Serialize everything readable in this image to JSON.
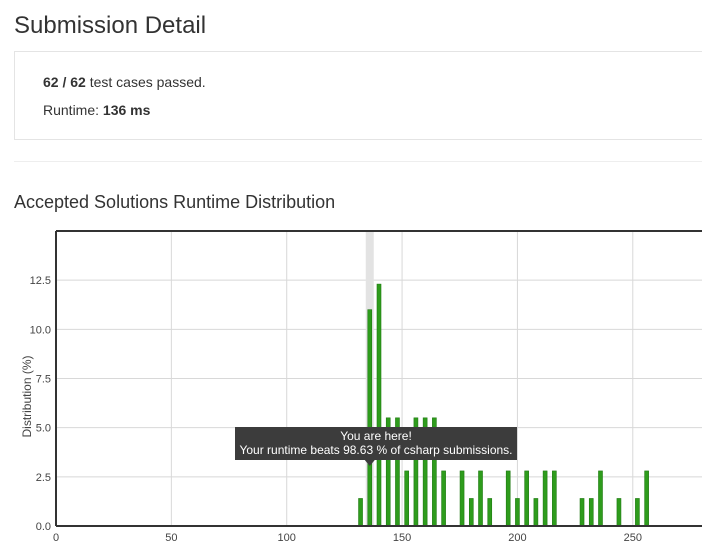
{
  "page": {
    "title": "Submission Detail"
  },
  "result": {
    "passed": "62",
    "separator": " / ",
    "total": "62",
    "cases_suffix": " test cases passed.",
    "runtime_label": "Runtime: ",
    "runtime_value": "136 ms"
  },
  "section": {
    "title": "Accepted Solutions Runtime Distribution"
  },
  "colors": {
    "bar": "#2e9c1c",
    "bar_stroke": "#1f7a12",
    "highlight_band": "#e3e3e3",
    "grid": "#d8d8d8",
    "axis": "#333333",
    "tooltip_bg": "#3c3c3c"
  },
  "chart_data": {
    "type": "bar",
    "title": "",
    "xlabel": "",
    "ylabel": "Distribution (%)",
    "xlim": [
      0,
      280
    ],
    "ylim": [
      0,
      15
    ],
    "grid": true,
    "x_ticks": [
      0,
      50,
      100,
      150,
      200,
      250
    ],
    "y_ticks": [
      0,
      2.5,
      5,
      7.5,
      10,
      12.5
    ],
    "y_tick_labels": [
      "0.0",
      "2.5",
      "5.0",
      "7.5",
      "10.0",
      "12.5"
    ],
    "x_tick_labels": [
      "0",
      "50",
      "100",
      "150",
      "200",
      "250"
    ],
    "highlight_x": 136,
    "x": [
      132,
      136,
      140,
      144,
      148,
      152,
      156,
      160,
      164,
      168,
      176,
      180,
      184,
      188,
      196,
      200,
      204,
      208,
      212,
      216,
      228,
      232,
      236,
      244,
      252,
      256
    ],
    "values": [
      1.4,
      11.0,
      12.3,
      5.5,
      5.5,
      2.8,
      5.5,
      5.5,
      5.5,
      2.8,
      2.8,
      1.4,
      2.8,
      1.4,
      2.8,
      1.4,
      2.8,
      1.4,
      2.8,
      2.8,
      1.4,
      1.4,
      2.8,
      1.4,
      1.4,
      2.8
    ],
    "tooltip": {
      "line1": "You are here!",
      "line2": "Your runtime beats 98.63 % of csharp submissions."
    }
  }
}
